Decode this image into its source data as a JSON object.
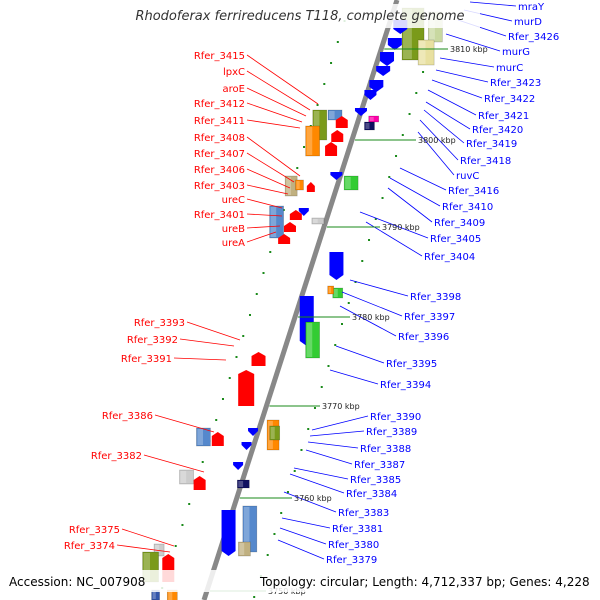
{
  "title": "Rhodoferax ferrireducens T118, complete genome",
  "footer": {
    "accession": "Accession: NC_007908",
    "topology": "Topology: circular; Length: 4,712,337 bp; Genes: 4,228"
  },
  "colors": {
    "forward": "#ff0000",
    "reverse": "#0000ff",
    "backbone": "#888888",
    "ticks": "#1a8a1a"
  },
  "kbp_labels": [
    "3810 kbp",
    "3800 kbp",
    "3790 kbp",
    "3780 kbp",
    "3770 kbp",
    "3760 kbp",
    "3750 kbp"
  ],
  "left_labels": [
    "Rfer_3415",
    "lpxC",
    "aroE",
    "Rfer_3412",
    "Rfer_3411",
    "Rfer_3408",
    "Rfer_3407",
    "Rfer_3406",
    "Rfer_3403",
    "ureC",
    "Rfer_3401",
    "ureB",
    "ureA",
    "Rfer_3393",
    "Rfer_3392",
    "Rfer_3391",
    "Rfer_3386",
    "Rfer_3382",
    "Rfer_3375",
    "Rfer_3374"
  ],
  "right_labels": [
    "mraY",
    "murD",
    "Rfer_3426",
    "murG",
    "murC",
    "Rfer_3423",
    "Rfer_3422",
    "Rfer_3421",
    "Rfer_3420",
    "Rfer_3419",
    "Rfer_3418",
    "ruvC",
    "Rfer_3416",
    "Rfer_3410",
    "Rfer_3409",
    "Rfer_3405",
    "Rfer_3404",
    "Rfer_3398",
    "Rfer_3397",
    "Rfer_3396",
    "Rfer_3395",
    "Rfer_3394",
    "Rfer_3390",
    "Rfer_3389",
    "Rfer_3388",
    "Rfer_3387",
    "Rfer_3385",
    "Rfer_3384",
    "Rfer_3383",
    "Rfer_3381",
    "Rfer_3380",
    "Rfer_3379"
  ]
}
